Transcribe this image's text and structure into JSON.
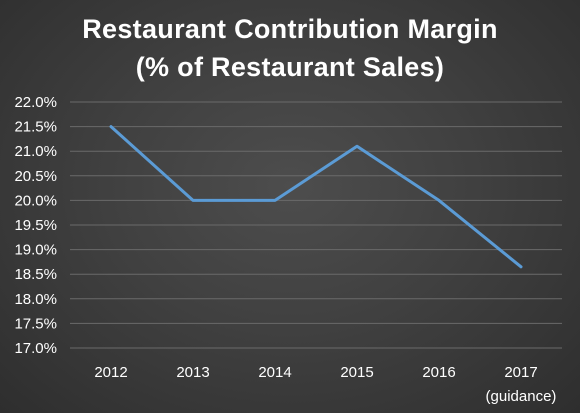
{
  "chart_data": {
    "type": "line",
    "title": "Restaurant Contribution Margin",
    "subtitle": "(% of Restaurant Sales)",
    "categories": [
      "2012",
      "2013",
      "2014",
      "2015",
      "2016",
      "2017"
    ],
    "category_sublabels": [
      "",
      "",
      "",
      "",
      "",
      "(guidance)"
    ],
    "series": [
      {
        "values": [
          21.5,
          20.0,
          20.0,
          21.1,
          20.0,
          18.65
        ],
        "color": "#5b9bd5"
      }
    ],
    "ylim": [
      17.0,
      22.0
    ],
    "yticks": [
      17.0,
      17.5,
      18.0,
      18.5,
      19.0,
      19.5,
      20.0,
      20.5,
      21.0,
      21.5,
      22.0
    ],
    "ytick_format": "percent_1dp",
    "grid": true,
    "legend": "none"
  },
  "colors": {
    "background": "#404040",
    "text": "#ffffff",
    "gridline": "#6a6a6a",
    "series": "#5b9bd5"
  }
}
